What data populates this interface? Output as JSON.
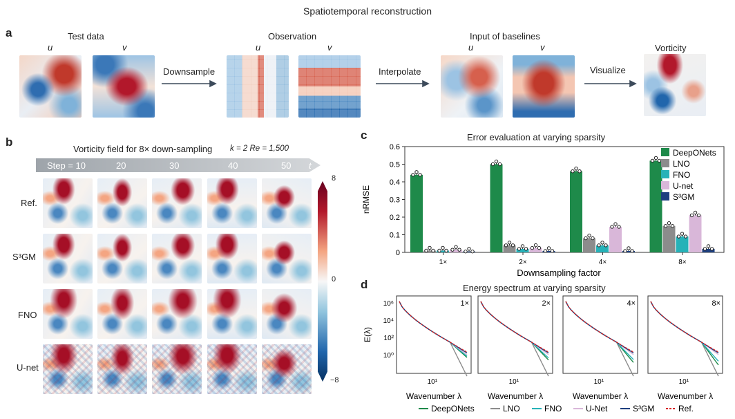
{
  "figure": {
    "title": "Spatiotemporal reconstruction",
    "panel_a": {
      "letter": "a",
      "test_data": "Test data",
      "observation": "Observation",
      "input_baselines": "Input of baselines",
      "vorticity": "Vorticity",
      "u": "u",
      "v": "v",
      "downsample": "Downsample",
      "interpolate": "Interpolate",
      "visualize": "Visualize"
    },
    "panel_b": {
      "letter": "b",
      "title": "Vorticity field for 8× down-sampling",
      "params": "k = 2  Re = 1,500",
      "steps": [
        "Step = 10",
        "20",
        "30",
        "40",
        "50"
      ],
      "t_label": "t",
      "rows": [
        "Ref.",
        "S³GM",
        "FNO",
        "U-net"
      ],
      "colorbar": {
        "max": "8",
        "mid": "0",
        "min": "−8"
      }
    },
    "panel_d": {
      "letter": "d",
      "title": "Energy spectrum at varying sparsity",
      "factors": [
        "1×",
        "2×",
        "4×",
        "8×"
      ],
      "ylabel": "E(λ)",
      "xlabel": "Wavenumber λ",
      "yticks": [
        "10⁶",
        "10⁴",
        "10²",
        "10⁰"
      ],
      "xtick": "10¹",
      "legend": [
        "DeepONets",
        "LNO",
        "FNO",
        "U-Net",
        "S³GM",
        "Ref."
      ]
    }
  },
  "colors": {
    "DeepONets": "#1e8a4a",
    "LNO": "#8c8c8c",
    "FNO": "#26b2b8",
    "U-net": "#d9b7d9",
    "S3GM": "#1d3f7f",
    "Ref": "#d62728",
    "field_red": "#b2182b",
    "field_blue": "#2166ac"
  },
  "chart_data": {
    "letter": "c",
    "type": "bar",
    "title": "Error evaluation at varying sparsity",
    "xlabel": "Downsampling factor",
    "ylabel": "nRMSE",
    "ylim": [
      0,
      0.6
    ],
    "yticks": [
      "0",
      "0.1",
      "0.2",
      "0.3",
      "0.4",
      "0.5",
      "0.6"
    ],
    "categories": [
      "1×",
      "2×",
      "4×",
      "8×"
    ],
    "series": [
      {
        "name": "DeepONets",
        "values": [
          0.44,
          0.5,
          0.46,
          0.52
        ]
      },
      {
        "name": "LNO",
        "values": [
          0.01,
          0.04,
          0.08,
          0.15
        ]
      },
      {
        "name": "FNO",
        "values": [
          0.01,
          0.02,
          0.04,
          0.09
        ]
      },
      {
        "name": "U-net",
        "values": [
          0.015,
          0.025,
          0.145,
          0.21
        ]
      },
      {
        "name": "S³GM",
        "values": [
          0.005,
          0.008,
          0.008,
          0.02
        ]
      }
    ],
    "legend_position": "top-right"
  }
}
